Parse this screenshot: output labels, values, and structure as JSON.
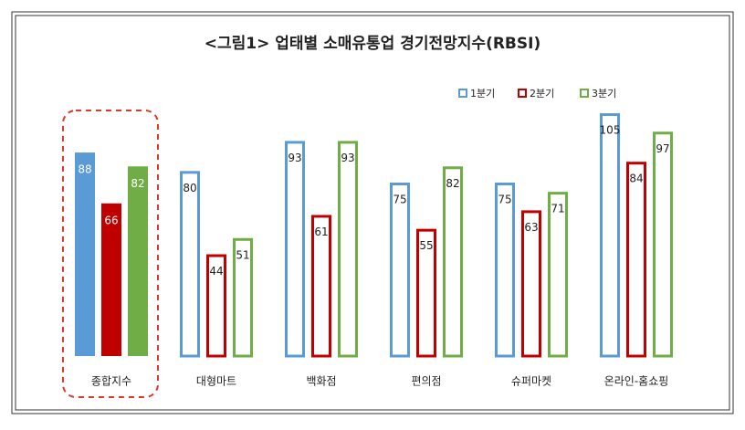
{
  "chart_data": {
    "type": "bar",
    "title": "<그림1> 업태별 소매유통업 경기전망지수(RBSI)",
    "categories": [
      "종합지수",
      "대형마트",
      "백화점",
      "편의점",
      "슈퍼마켓",
      "온라인-홈쇼핑"
    ],
    "series": [
      {
        "name": "1분기",
        "color": "#5b9bd5",
        "values": [
          88,
          80,
          93,
          75,
          75,
          105
        ]
      },
      {
        "name": "2분기",
        "color": "#c00000",
        "values": [
          66,
          44,
          61,
          55,
          63,
          84
        ]
      },
      {
        "name": "3분기",
        "color": "#70ad47",
        "values": [
          82,
          51,
          93,
          82,
          71,
          97
        ]
      }
    ],
    "legend": "top-right"
  }
}
